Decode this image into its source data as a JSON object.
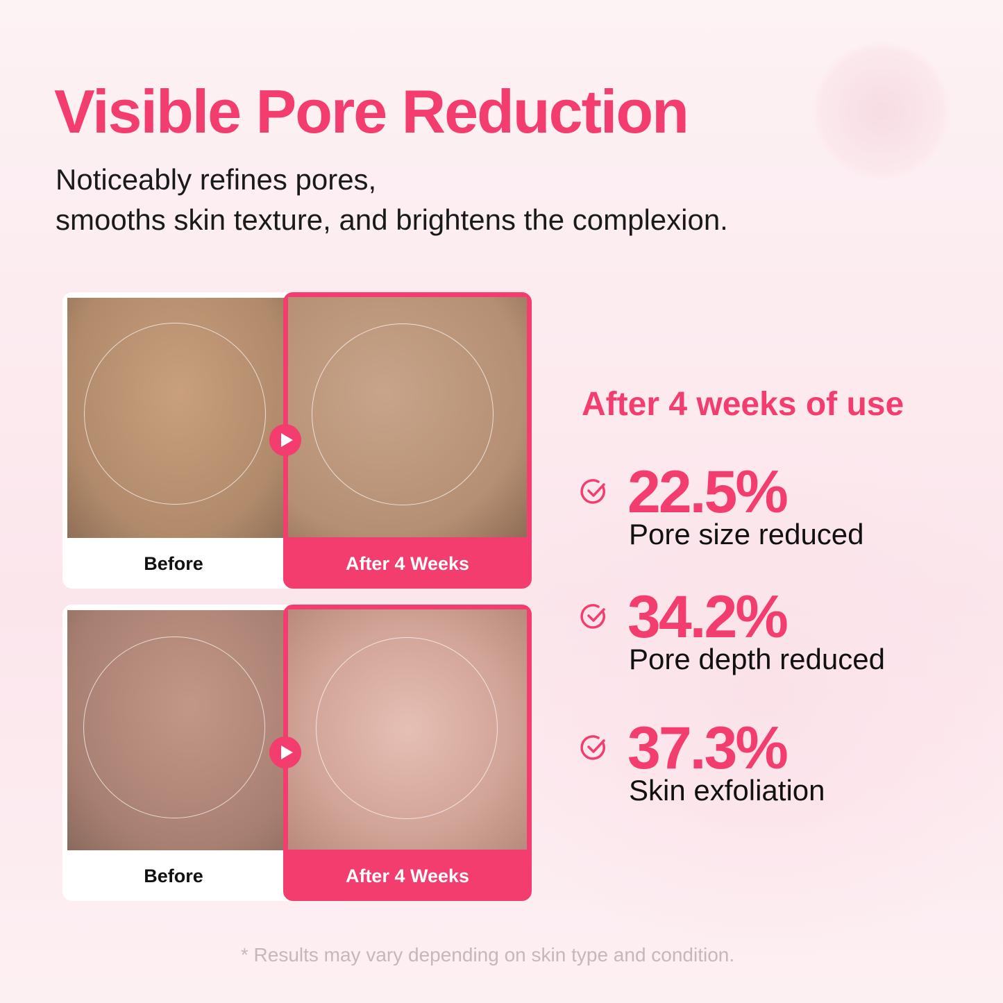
{
  "title": "Visible Pore Reduction",
  "subtitle": [
    "Noticeably refines pores,",
    "smooths skin texture, and brightens the complexion."
  ],
  "comparisons": [
    {
      "before_label": "Before",
      "after_label": "After 4 Weeks"
    },
    {
      "before_label": "Before",
      "after_label": "After 4 Weeks"
    }
  ],
  "results": {
    "heading": "After 4 weeks of use",
    "stats": [
      {
        "value": "22.5%",
        "label": "Pore size reduced",
        "icon": "check-circle-icon"
      },
      {
        "value": "34.2%",
        "label": "Pore depth reduced",
        "icon": "check-circle-icon"
      },
      {
        "value": "37.3%",
        "label": "Skin exfoliation",
        "icon": "check-circle-icon"
      }
    ]
  },
  "footnote": "* Results may vary depending on skin type and condition.",
  "colors": {
    "accent": "#f23d6e",
    "text": "#111111",
    "footnote": "#c4b8bb"
  }
}
